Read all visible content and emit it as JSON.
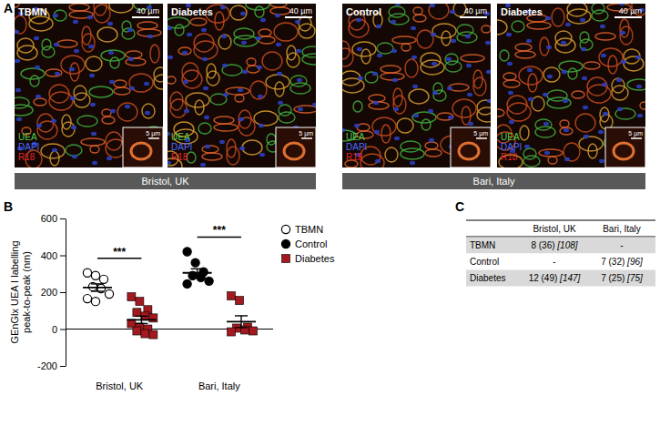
{
  "panel_labels": [
    "A",
    "B",
    "C"
  ],
  "images": [
    {
      "title": "TBMN",
      "scale": "40 µm",
      "inset_scale": "5 µm"
    },
    {
      "title": "Diabetes",
      "scale": "40 µm",
      "inset_scale": "5 µm"
    },
    {
      "title": "Control",
      "scale": "40 µm",
      "inset_scale": "5 µm"
    },
    {
      "title": "Diabetes",
      "scale": "40 µm",
      "inset_scale": "5 µm"
    }
  ],
  "stains": [
    {
      "name": "UEA",
      "color": "#4cd14c"
    },
    {
      "name": "DAPI",
      "color": "#4a6bff"
    },
    {
      "name": "R18",
      "color": "#e8242a"
    }
  ],
  "sites": [
    "Bristol, UK",
    "Bari, Italy"
  ],
  "chart_data": {
    "type": "scatter",
    "categories": [
      "Bristol, UK",
      "Bari, Italy"
    ],
    "y_label": [
      "GEnGlx UEA I labelling",
      "peak-to-peak (nm)"
    ],
    "ylim": [
      -200,
      600
    ],
    "yticks": [
      -200,
      0,
      200,
      400,
      600
    ],
    "legend": "top-right",
    "significance": [
      "***",
      "***"
    ],
    "series": [
      {
        "name": "TBMN",
        "marker": "circle-open",
        "color": "#000000",
        "values": [
          [
            305,
            290,
            270,
            230,
            220,
            190,
            165,
            150
          ],
          null
        ],
        "mean": [
          225,
          null
        ],
        "error": [
          20,
          null
        ]
      },
      {
        "name": "Control",
        "marker": "circle",
        "color": "#000000",
        "values": [
          null,
          [
            420,
            360,
            310,
            290,
            280,
            260,
            245
          ]
        ],
        "mean": [
          null,
          305
        ],
        "error": [
          null,
          22
        ]
      },
      {
        "name": "Diabetes",
        "marker": "square",
        "color": "#a3191f",
        "values": [
          [
            175,
            150,
            105,
            90,
            70,
            60,
            30,
            10,
            0,
            -10,
            -25,
            -30
          ],
          [
            180,
            155,
            10,
            5,
            -5,
            -10,
            -15
          ]
        ],
        "mean": [
          50,
          40
        ],
        "error": [
          20,
          32
        ]
      }
    ]
  },
  "table": {
    "header": [
      "Bristol, UK",
      "Bari, Italy"
    ],
    "rows": [
      {
        "label": "TBMN",
        "cells": [
          "8 (36) [108]",
          "-"
        ]
      },
      {
        "label": "Control",
        "cells": [
          "-",
          "7 (32) [96]"
        ]
      },
      {
        "label": "Diabetes",
        "cells": [
          "12 (49) [147]",
          "7 (25) [75]"
        ]
      }
    ]
  }
}
